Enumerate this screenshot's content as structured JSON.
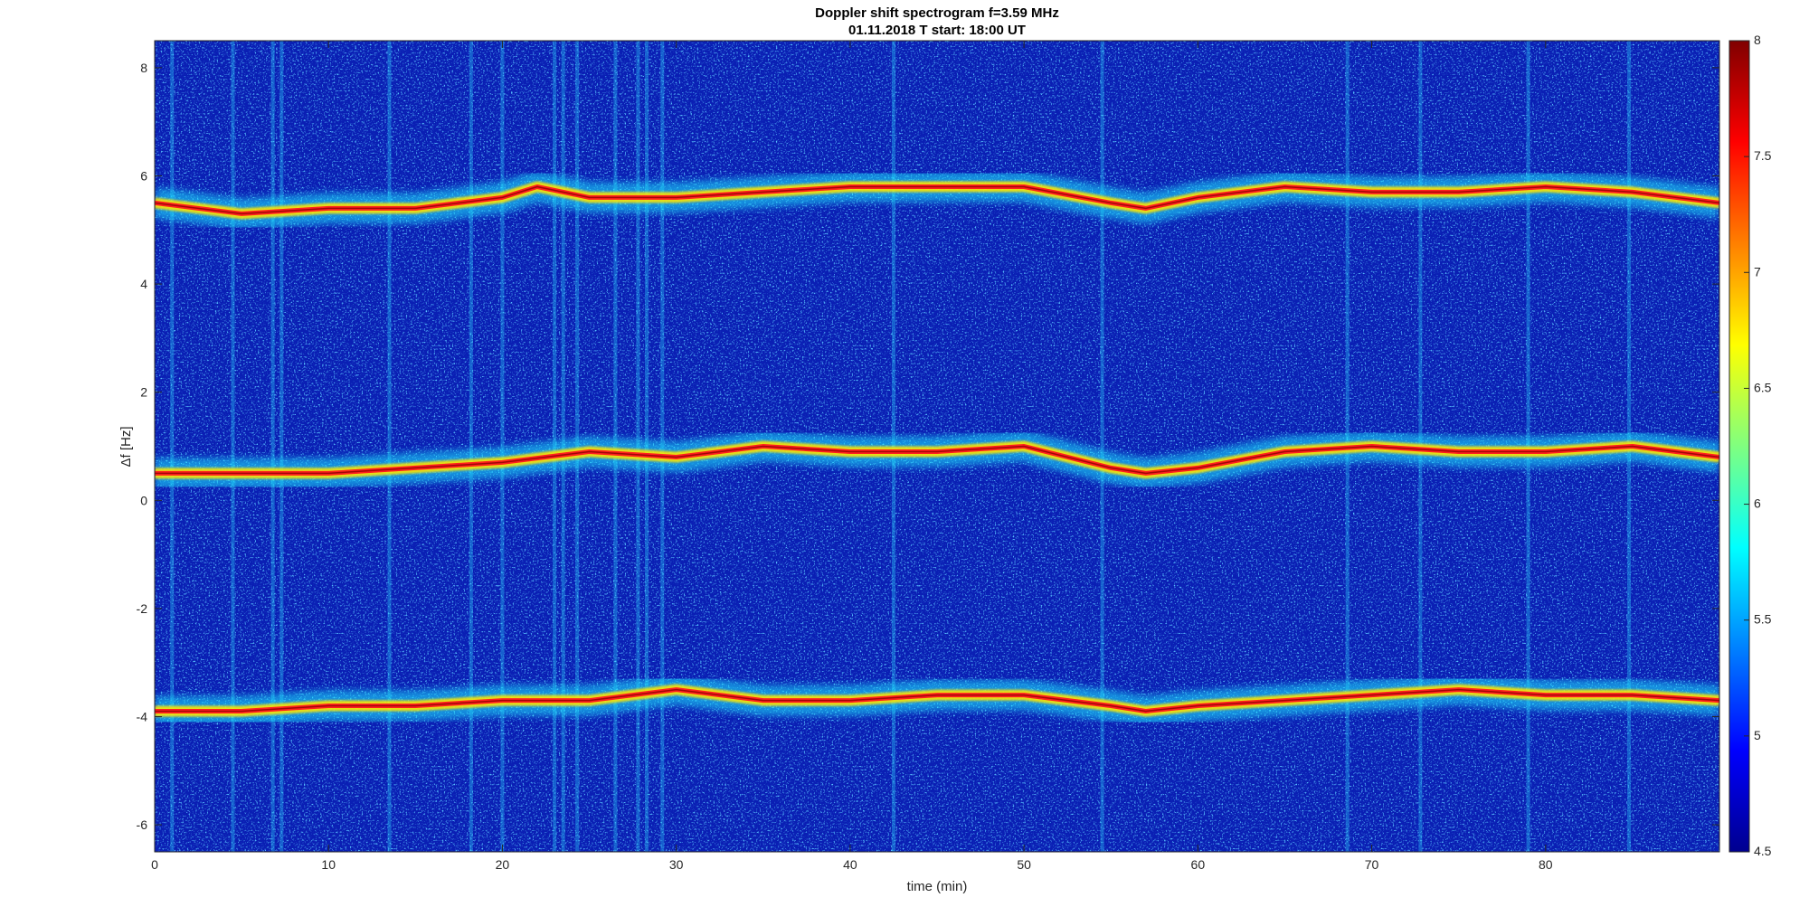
{
  "chart_data": {
    "type": "heatmap",
    "title": "Doppler shift spectrogram f=3.59 MHz",
    "subtitle": "01.11.2018   T start: 18:00 UT",
    "xlabel": "time (min)",
    "ylabel": "Δf [Hz]",
    "xlim": [
      0,
      90
    ],
    "ylim": [
      -6.5,
      8.5
    ],
    "x_ticks": [
      0,
      10,
      20,
      30,
      40,
      50,
      60,
      70,
      80
    ],
    "y_ticks": [
      -6,
      -4,
      -2,
      0,
      2,
      4,
      6,
      8
    ],
    "colorbar": {
      "colormap": "jet",
      "clim": [
        4.5,
        8
      ],
      "ticks": [
        4.5,
        5,
        5.5,
        6,
        6.5,
        7,
        7.5,
        8
      ],
      "tick_labels": [
        "4.5",
        "5",
        "5.5",
        "6",
        "6.5",
        "7",
        "7.5",
        "8"
      ]
    },
    "series": [
      {
        "x": [
          0,
          5,
          10,
          15,
          20,
          22,
          25,
          30,
          35,
          40,
          45,
          50,
          55,
          57,
          60,
          65,
          70,
          75,
          80,
          85,
          90
        ],
        "y": [
          5.5,
          5.3,
          5.4,
          5.4,
          5.6,
          5.8,
          5.6,
          5.6,
          5.7,
          5.8,
          5.8,
          5.8,
          5.5,
          5.4,
          5.6,
          5.8,
          5.7,
          5.7,
          5.8,
          5.7,
          5.5
        ]
      },
      {
        "x": [
          0,
          5,
          10,
          15,
          20,
          25,
          30,
          35,
          40,
          45,
          50,
          55,
          57,
          60,
          65,
          70,
          75,
          80,
          85,
          90
        ],
        "y": [
          0.5,
          0.5,
          0.5,
          0.6,
          0.7,
          0.9,
          0.8,
          1.0,
          0.9,
          0.9,
          1.0,
          0.6,
          0.5,
          0.6,
          0.9,
          1.0,
          0.9,
          0.9,
          1.0,
          0.8
        ]
      },
      {
        "x": [
          0,
          5,
          10,
          15,
          20,
          25,
          30,
          35,
          40,
          45,
          50,
          55,
          57,
          60,
          65,
          70,
          75,
          80,
          85,
          90
        ],
        "y": [
          -3.9,
          -3.9,
          -3.8,
          -3.8,
          -3.7,
          -3.7,
          -3.5,
          -3.7,
          -3.7,
          -3.6,
          -3.6,
          -3.8,
          -3.9,
          -3.8,
          -3.7,
          -3.6,
          -3.5,
          -3.6,
          -3.6,
          -3.7
        ]
      }
    ],
    "vertical_streaks_min": [
      1,
      4.5,
      6.8,
      7.3,
      13.5,
      18.2,
      20,
      23,
      23.5,
      24.3,
      26.5,
      27.8,
      28.3,
      29.2,
      42.5,
      54.5,
      68.6,
      72.8,
      79,
      84.8
    ]
  }
}
